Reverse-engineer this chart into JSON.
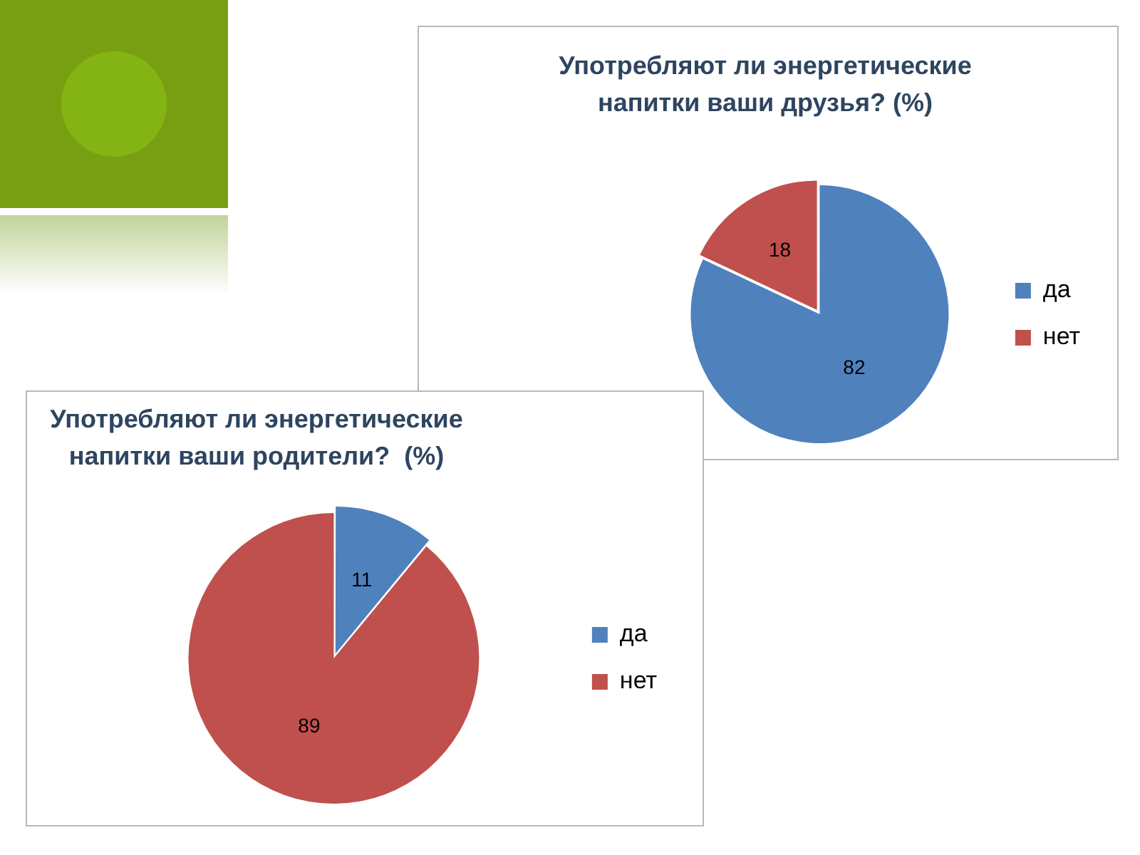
{
  "chart_data": [
    {
      "type": "pie",
      "title": "Употребляют ли энергетические напитки ваши друзья? (%)",
      "categories": [
        "да",
        "нет"
      ],
      "values": [
        82,
        18
      ],
      "colors": [
        "#4f81bd",
        "#c0504d"
      ],
      "legend": "right",
      "data_labels": true
    },
    {
      "type": "pie",
      "title": "Употребляют ли энергетические напитки ваши родители?  (%)",
      "categories": [
        "да",
        "нет"
      ],
      "values": [
        11,
        89
      ],
      "colors": [
        "#4f81bd",
        "#c0504d"
      ],
      "legend": "right",
      "data_labels": true
    }
  ]
}
